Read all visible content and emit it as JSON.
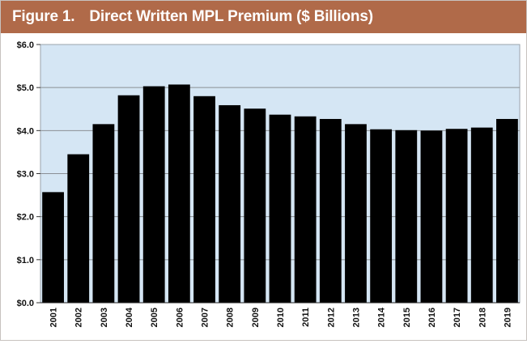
{
  "figure": {
    "label": "Figure 1.",
    "title": "Direct Written MPL Premium ($ Billions)"
  },
  "colors": {
    "header_background": "#b06a49",
    "header_text": "#ffffff",
    "plot_background": "#d5e6f4",
    "bar_fill": "#000000",
    "gridline": "#8a8f95"
  },
  "chart_data": {
    "type": "bar",
    "title": "Direct Written MPL Premium ($ Billions)",
    "xlabel": "",
    "ylabel": "",
    "categories": [
      "2001",
      "2002",
      "2003",
      "2004",
      "2005",
      "2006",
      "2007",
      "2008",
      "2009",
      "2010",
      "2011",
      "2012",
      "2013",
      "2014",
      "2015",
      "2016",
      "2017",
      "2018",
      "2019"
    ],
    "values": [
      2.57,
      3.45,
      4.15,
      4.82,
      5.03,
      5.07,
      4.8,
      4.59,
      4.51,
      4.37,
      4.33,
      4.27,
      4.15,
      4.03,
      4.01,
      4.0,
      4.04,
      4.07,
      4.27
    ],
    "ylim": [
      0,
      6
    ],
    "yticks": [
      0,
      1,
      2,
      3,
      4,
      5,
      6
    ],
    "ytick_labels": [
      "$0.0",
      "$1.0",
      "$2.0",
      "$3.0",
      "$4.0",
      "$5.0",
      "$6.0"
    ],
    "grid": true,
    "legend": "none"
  }
}
